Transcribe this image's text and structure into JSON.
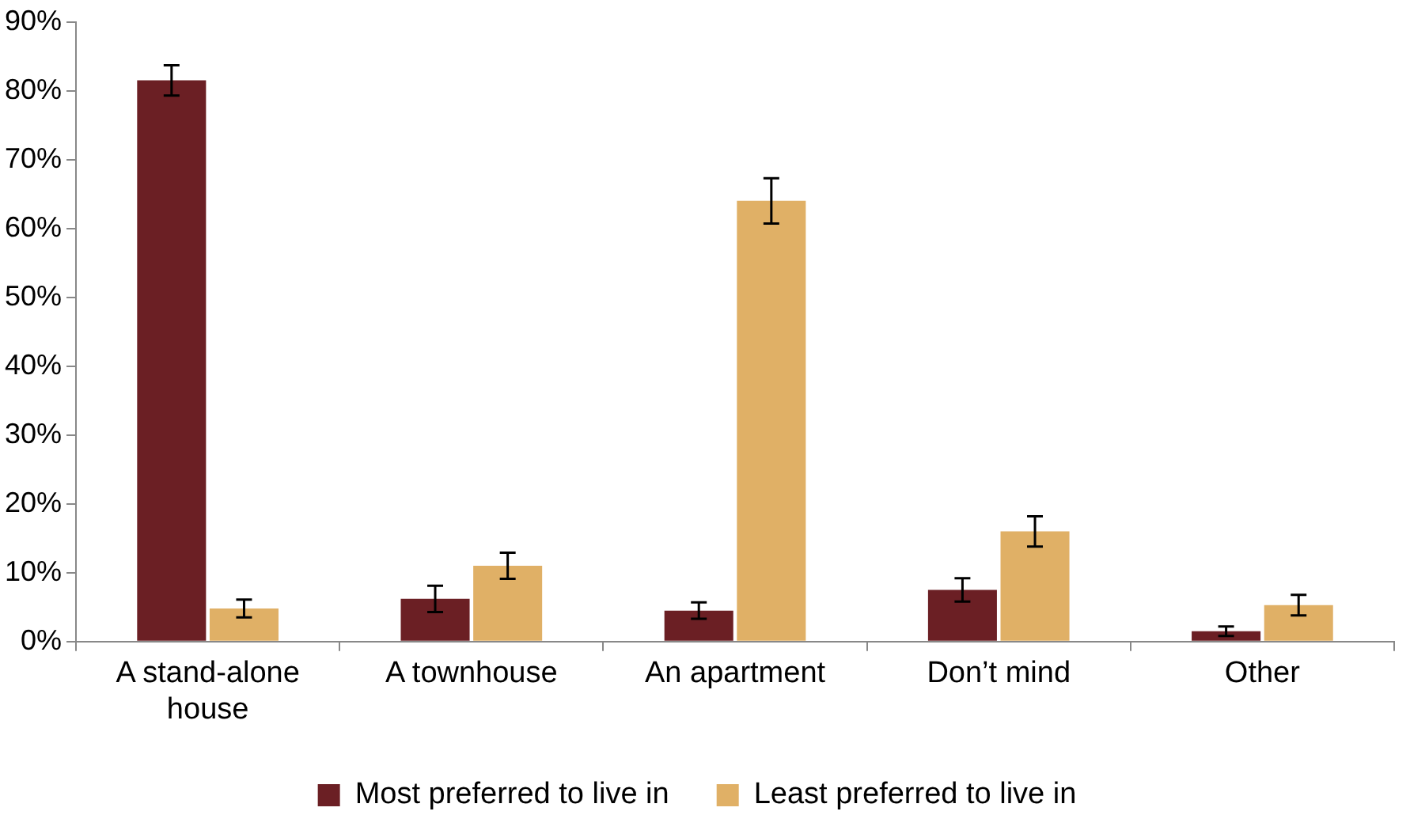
{
  "chart_data": {
    "type": "bar",
    "categories": [
      "A stand-alone house",
      "A townhouse",
      "An apartment",
      "Don’t mind",
      "Other"
    ],
    "series": [
      {
        "name": "Most preferred to live in",
        "color": "#6b1f24",
        "values": [
          81.5,
          6.2,
          4.5,
          7.5,
          1.5
        ],
        "errors": [
          2.2,
          1.9,
          1.2,
          1.7,
          0.7
        ]
      },
      {
        "name": "Least preferred to live in",
        "color": "#e0b066",
        "values": [
          4.8,
          11,
          64,
          16,
          5.3
        ],
        "errors": [
          1.3,
          1.9,
          3.3,
          2.2,
          1.5
        ]
      }
    ],
    "ylim": [
      0,
      90
    ],
    "yticks": [
      {
        "value": 0,
        "label": "0%"
      },
      {
        "value": 10,
        "label": "10%"
      },
      {
        "value": 20,
        "label": "20%"
      },
      {
        "value": 30,
        "label": "30%"
      },
      {
        "value": 40,
        "label": "40%"
      },
      {
        "value": 50,
        "label": "50%"
      },
      {
        "value": 60,
        "label": "60%"
      },
      {
        "value": 70,
        "label": "70%"
      },
      {
        "value": 80,
        "label": "80%"
      },
      {
        "value": 90,
        "label": "90%"
      }
    ],
    "grid": false,
    "legend": "bottom"
  }
}
